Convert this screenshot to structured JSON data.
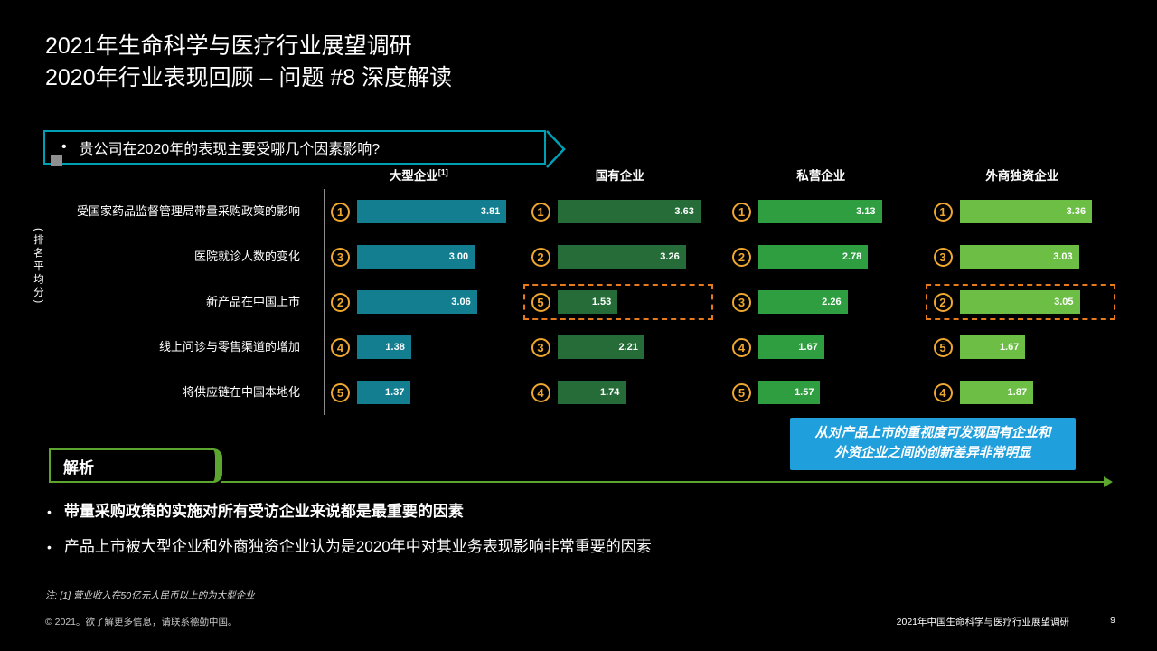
{
  "title": {
    "line1": "2021年生命科学与医疗行业展望调研",
    "line2": "2020年行业表现回顾 – 问题 #8 深度解读"
  },
  "question": {
    "bullet": "•",
    "text": "贵公司在2020年的表现主要受哪几个因素影响?"
  },
  "chart_data": {
    "type": "bar",
    "ylabel": "(排名平均分)",
    "xlim": [
      0,
      4.0
    ],
    "grid": false,
    "legend_position": "column-headers",
    "categories": [
      "受国家药品监督管理局带量采购政策的影响",
      "医院就诊人数的变化",
      "新产品在中国上市",
      "线上问诊与零售渠道的增加",
      "将供应链在中国本地化"
    ],
    "series": [
      {
        "name": "大型企业",
        "sup": "[1]",
        "color": "#137E8F",
        "values": [
          3.81,
          3.0,
          3.06,
          1.38,
          1.37
        ],
        "ranks": [
          1,
          3,
          2,
          4,
          5
        ],
        "highlight_rows": []
      },
      {
        "name": "国有企业",
        "color": "#256C38",
        "values": [
          3.63,
          3.26,
          1.53,
          2.21,
          1.74
        ],
        "ranks": [
          1,
          2,
          5,
          3,
          4
        ],
        "highlight_rows": [
          2
        ]
      },
      {
        "name": "私营企业",
        "color": "#2F9E41",
        "values": [
          3.13,
          2.78,
          2.26,
          1.67,
          1.57
        ],
        "ranks": [
          1,
          2,
          3,
          4,
          5
        ],
        "highlight_rows": []
      },
      {
        "name": "外商独资企业",
        "color": "#6CBE45",
        "values": [
          3.36,
          3.03,
          3.05,
          1.67,
          1.87
        ],
        "ranks": [
          1,
          3,
          2,
          5,
          4
        ],
        "highlight_rows": [
          2
        ]
      }
    ],
    "highlight_color": "#E87A1E",
    "rank_badge_color": "#F0A830"
  },
  "callout": {
    "line1": "从对产品上市的重视度可发现国有企业和",
    "line2": "外资企业之间的创新差异非常明显",
    "color": "#1F9FDC"
  },
  "analysis": {
    "label": "解析",
    "color": "#5CA52F"
  },
  "bullets": [
    {
      "bullet": "•",
      "text": "带量采购政策的实施对所有受访企业来说都是最重要的因素",
      "bold": true
    },
    {
      "bullet": "•",
      "text": "产品上市被大型企业和外商独资企业认为是2020年中对其业务表现影响非常重要的因素",
      "bold": false
    }
  ],
  "footnote": "注: [1] 营业收入在50亿元人民币以上的为大型企业",
  "footer": {
    "left": "© 2021。欲了解更多信息，请联系德勤中国。",
    "right": "2021年中国生命科学与医疗行业展望调研",
    "page": "9"
  },
  "colors": {
    "accent_teal": "#00A0B4",
    "question_border": "#00A0B4"
  }
}
